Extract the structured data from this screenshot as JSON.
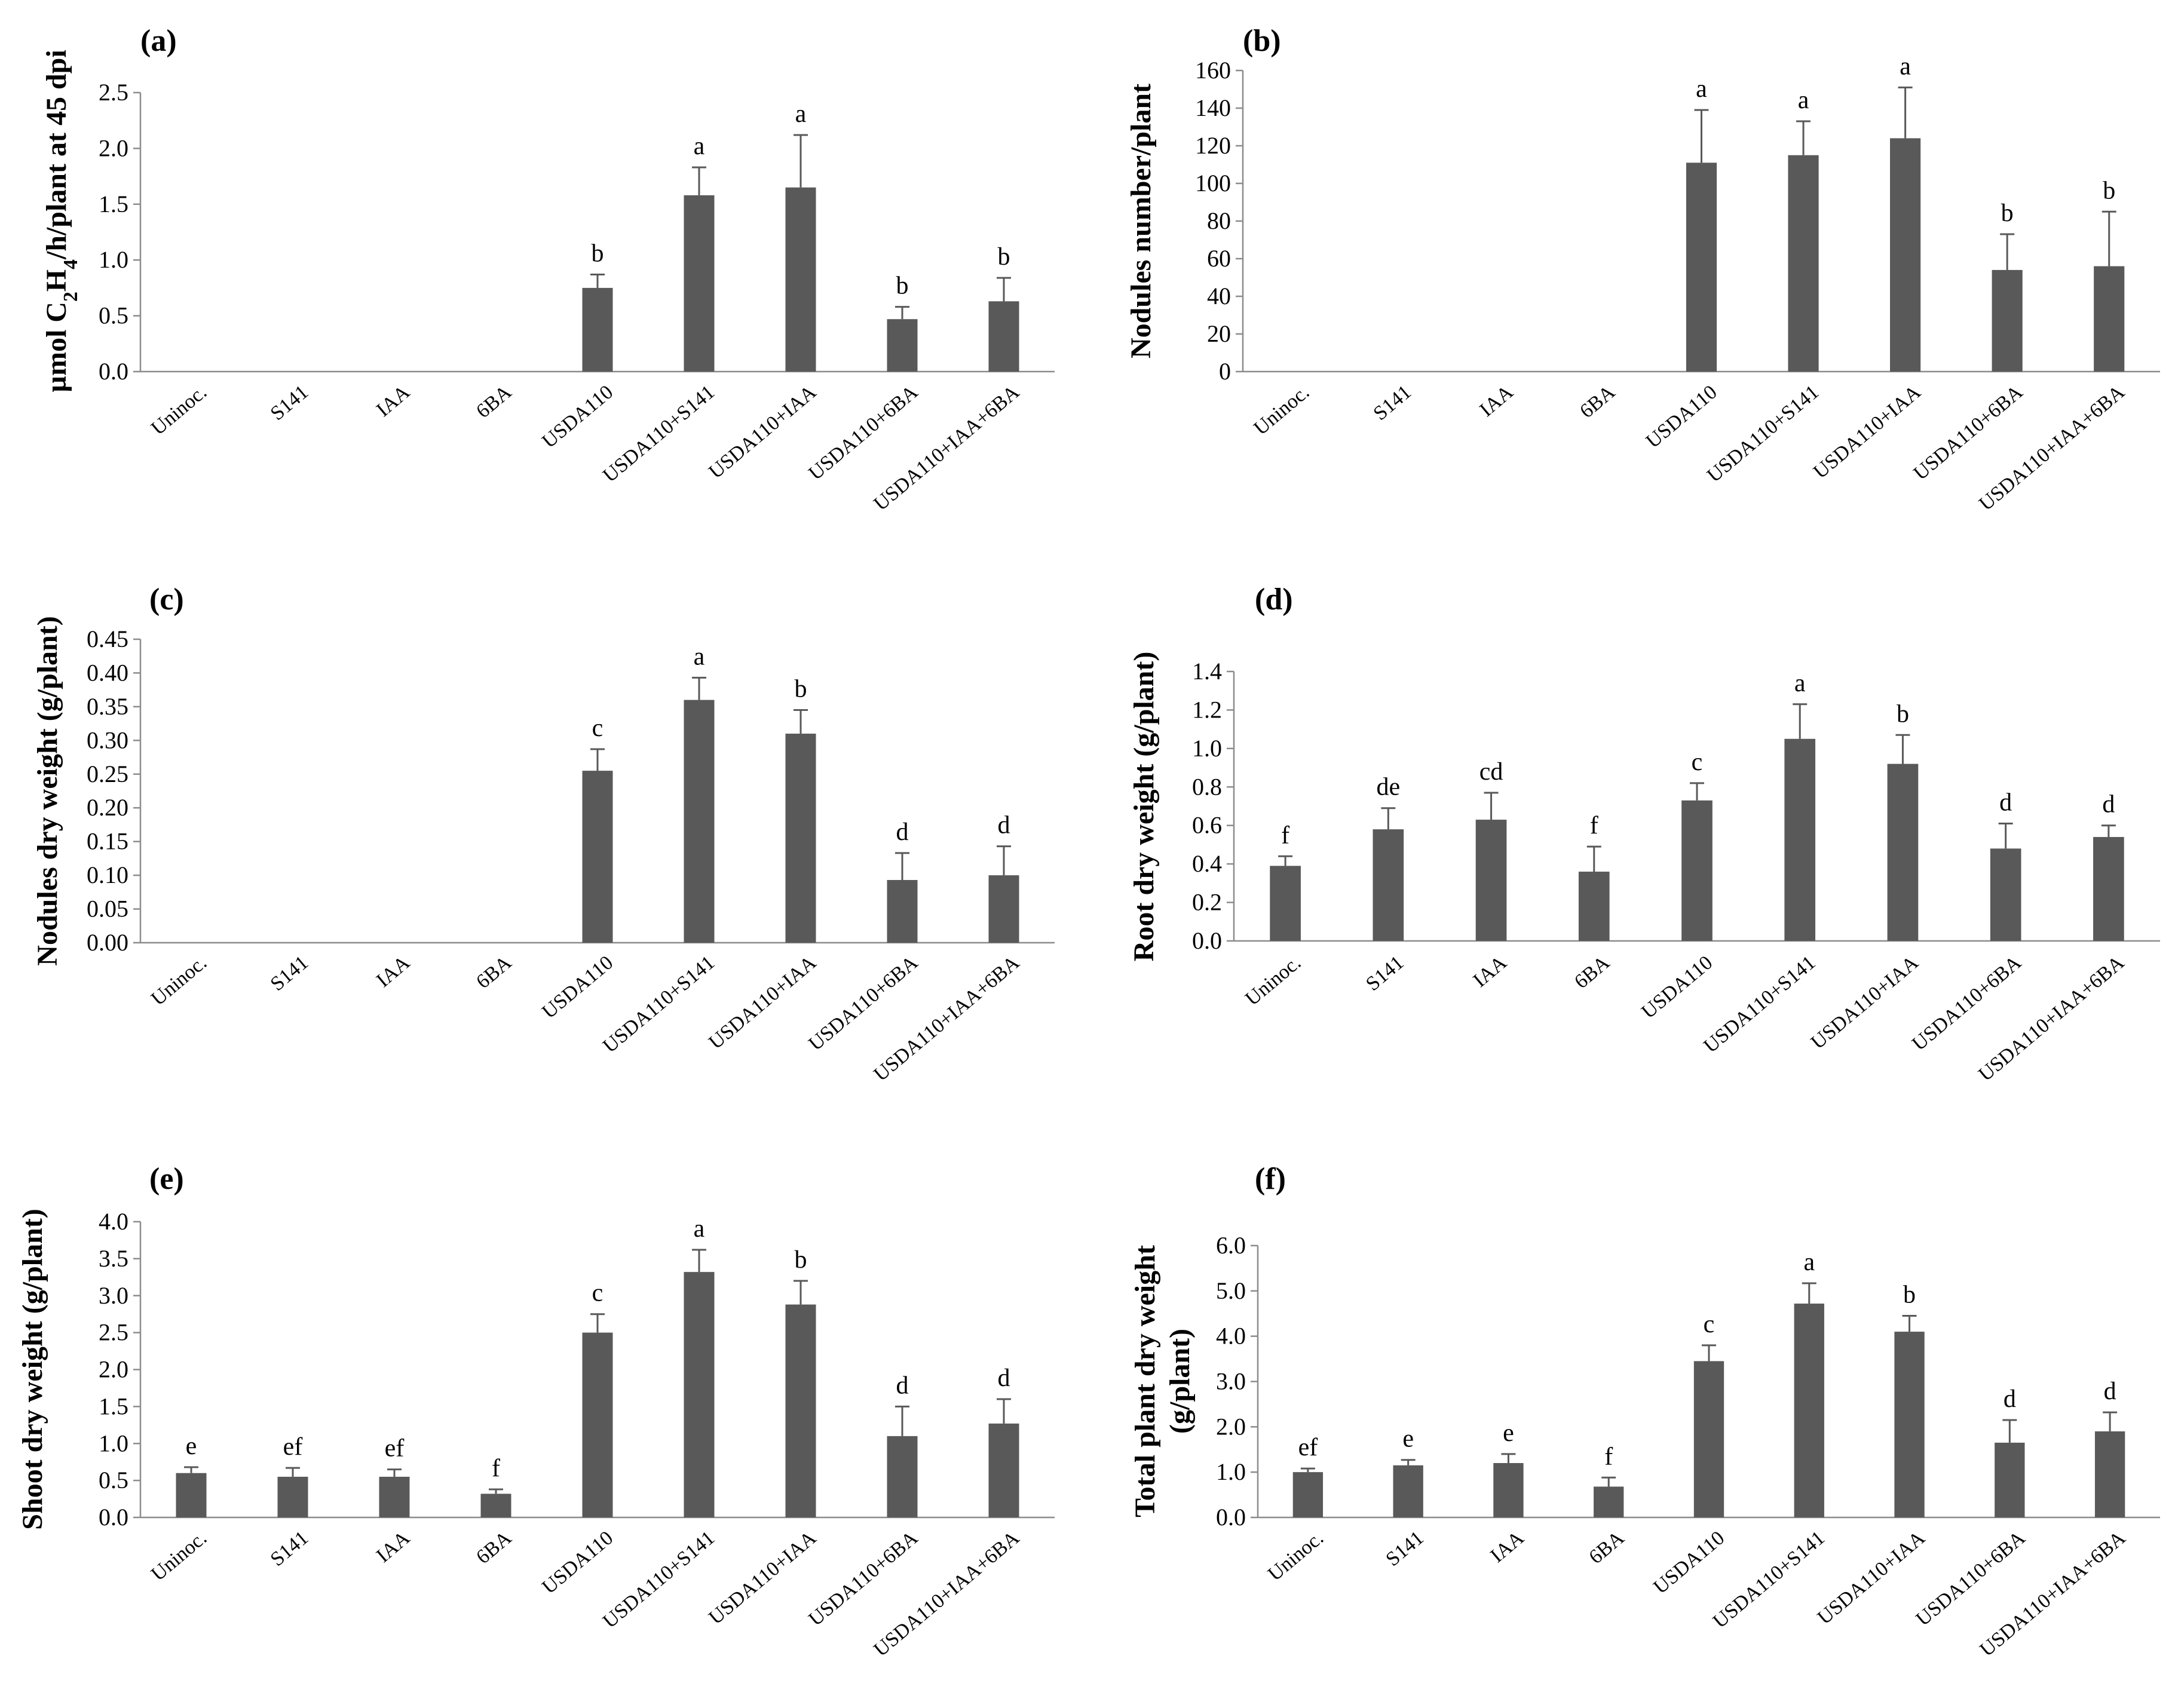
{
  "colors": {
    "bar": "#595959",
    "axis": "#8c8c8c",
    "text": "#000000"
  },
  "chart_data": [
    {
      "panel_label": "(a)",
      "type": "bar",
      "ylabel_html": "µmol C<tspan baseline-shift='sub' font-size='70%'>2</tspan>H<tspan baseline-shift='sub' font-size='70%'>4</tspan>/h/plant at 45 dpi",
      "ylabel": "µmol C2H4/h/plant at 45 dpi",
      "ylim": [
        0,
        2.5
      ],
      "yticks": [
        "0.0",
        "0.5",
        "1.0",
        "1.5",
        "2.0",
        "2.5"
      ],
      "categories": [
        "Uninoc.",
        "S141",
        "IAA",
        "6BA",
        "USDA110",
        "USDA110+S141",
        "USDA110+IAA",
        "USDA110+6BA",
        "USDA110+IAA+6BA"
      ],
      "values": [
        0,
        0,
        0,
        0,
        0.75,
        1.58,
        1.65,
        0.47,
        0.63
      ],
      "errors": [
        0,
        0,
        0,
        0,
        0.12,
        0.25,
        0.47,
        0.11,
        0.21
      ],
      "letters": [
        "",
        "",
        "",
        "",
        "b",
        "a",
        "a",
        "b",
        "b"
      ],
      "grid": false
    },
    {
      "panel_label": "(b)",
      "type": "bar",
      "ylabel": "Nodules number/plant",
      "ylim": [
        0,
        160
      ],
      "yticks": [
        "0",
        "20",
        "40",
        "60",
        "80",
        "100",
        "120",
        "140",
        "160"
      ],
      "categories": [
        "Uninoc.",
        "S141",
        "IAA",
        "6BA",
        "USDA110",
        "USDA110+S141",
        "USDA110+IAA",
        "USDA110+6BA",
        "USDA110+IAA+6BA"
      ],
      "values": [
        0,
        0,
        0,
        0,
        111,
        115,
        124,
        54,
        56
      ],
      "errors": [
        0,
        0,
        0,
        0,
        28,
        18,
        27,
        19,
        29
      ],
      "letters": [
        "",
        "",
        "",
        "",
        "a",
        "a",
        "a",
        "b",
        "b"
      ],
      "grid": false
    },
    {
      "panel_label": "(c)",
      "type": "bar",
      "ylabel": "Nodules dry weight (g/plant)",
      "ylim": [
        0,
        0.45
      ],
      "yticks": [
        "0.00",
        "0.05",
        "0.10",
        "0.15",
        "0.20",
        "0.25",
        "0.30",
        "0.35",
        "0.40",
        "0.45"
      ],
      "categories": [
        "Uninoc.",
        "S141",
        "IAA",
        "6BA",
        "USDA110",
        "USDA110+S141",
        "USDA110+IAA",
        "USDA110+6BA",
        "USDA110+IAA+6BA"
      ],
      "values": [
        0,
        0,
        0,
        0,
        0.255,
        0.36,
        0.31,
        0.093,
        0.1
      ],
      "errors": [
        0,
        0,
        0,
        0,
        0.032,
        0.033,
        0.035,
        0.04,
        0.043
      ],
      "letters": [
        "",
        "",
        "",
        "",
        "c",
        "a",
        "b",
        "d",
        "d"
      ],
      "grid": false
    },
    {
      "panel_label": "(d)",
      "type": "bar",
      "ylabel": "Root dry weight (g/plant)",
      "ylim": [
        0,
        1.4
      ],
      "yticks": [
        "0.0",
        "0.2",
        "0.4",
        "0.6",
        "0.8",
        "1.0",
        "1.2",
        "1.4"
      ],
      "categories": [
        "Uninoc.",
        "S141",
        "IAA",
        "6BA",
        "USDA110",
        "USDA110+S141",
        "USDA110+IAA",
        "USDA110+6BA",
        "USDA110+IAA+6BA"
      ],
      "values": [
        0.39,
        0.58,
        0.63,
        0.36,
        0.73,
        1.05,
        0.92,
        0.48,
        0.54
      ],
      "errors": [
        0.05,
        0.11,
        0.14,
        0.13,
        0.09,
        0.18,
        0.15,
        0.13,
        0.06
      ],
      "letters": [
        "f",
        "de",
        "cd",
        "f",
        "c",
        "a",
        "b",
        "d",
        "d"
      ],
      "grid": false
    },
    {
      "panel_label": "(e)",
      "type": "bar",
      "ylabel": "Shoot dry weight (g/plant)",
      "ylim": [
        0,
        4.0
      ],
      "yticks": [
        "0.0",
        "0.5",
        "1.0",
        "1.5",
        "2.0",
        "2.5",
        "3.0",
        "3.5",
        "4.0"
      ],
      "categories": [
        "Uninoc.",
        "S141",
        "IAA",
        "6BA",
        "USDA110",
        "USDA110+S141",
        "USDA110+IAA",
        "USDA110+6BA",
        "USDA110+IAA+6BA"
      ],
      "values": [
        0.6,
        0.55,
        0.55,
        0.32,
        2.5,
        3.32,
        2.88,
        1.1,
        1.27
      ],
      "errors": [
        0.08,
        0.12,
        0.1,
        0.06,
        0.25,
        0.3,
        0.32,
        0.4,
        0.33
      ],
      "letters": [
        "e",
        "ef",
        "ef",
        "f",
        "c",
        "a",
        "b",
        "d",
        "d"
      ],
      "grid": false
    },
    {
      "panel_label": "(f)",
      "type": "bar",
      "ylabel_lines": [
        "Total plant dry weight",
        "(g/plant)"
      ],
      "ylabel": "Total plant dry weight (g/plant)",
      "ylim": [
        0,
        6.0
      ],
      "yticks": [
        "0.0",
        "1.0",
        "2.0",
        "3.0",
        "4.0",
        "5.0",
        "6.0"
      ],
      "categories": [
        "Uninoc.",
        "S141",
        "IAA",
        "6BA",
        "USDA110",
        "USDA110+S141",
        "USDA110+IAA",
        "USDA110+6BA",
        "USDA110+IAA+6BA"
      ],
      "values": [
        1.0,
        1.15,
        1.2,
        0.68,
        3.45,
        4.72,
        4.1,
        1.65,
        1.9
      ],
      "errors": [
        0.08,
        0.12,
        0.2,
        0.2,
        0.35,
        0.45,
        0.35,
        0.5,
        0.42
      ],
      "letters": [
        "ef",
        "e",
        "e",
        "f",
        "c",
        "a",
        "b",
        "d",
        "d"
      ],
      "grid": false
    }
  ]
}
